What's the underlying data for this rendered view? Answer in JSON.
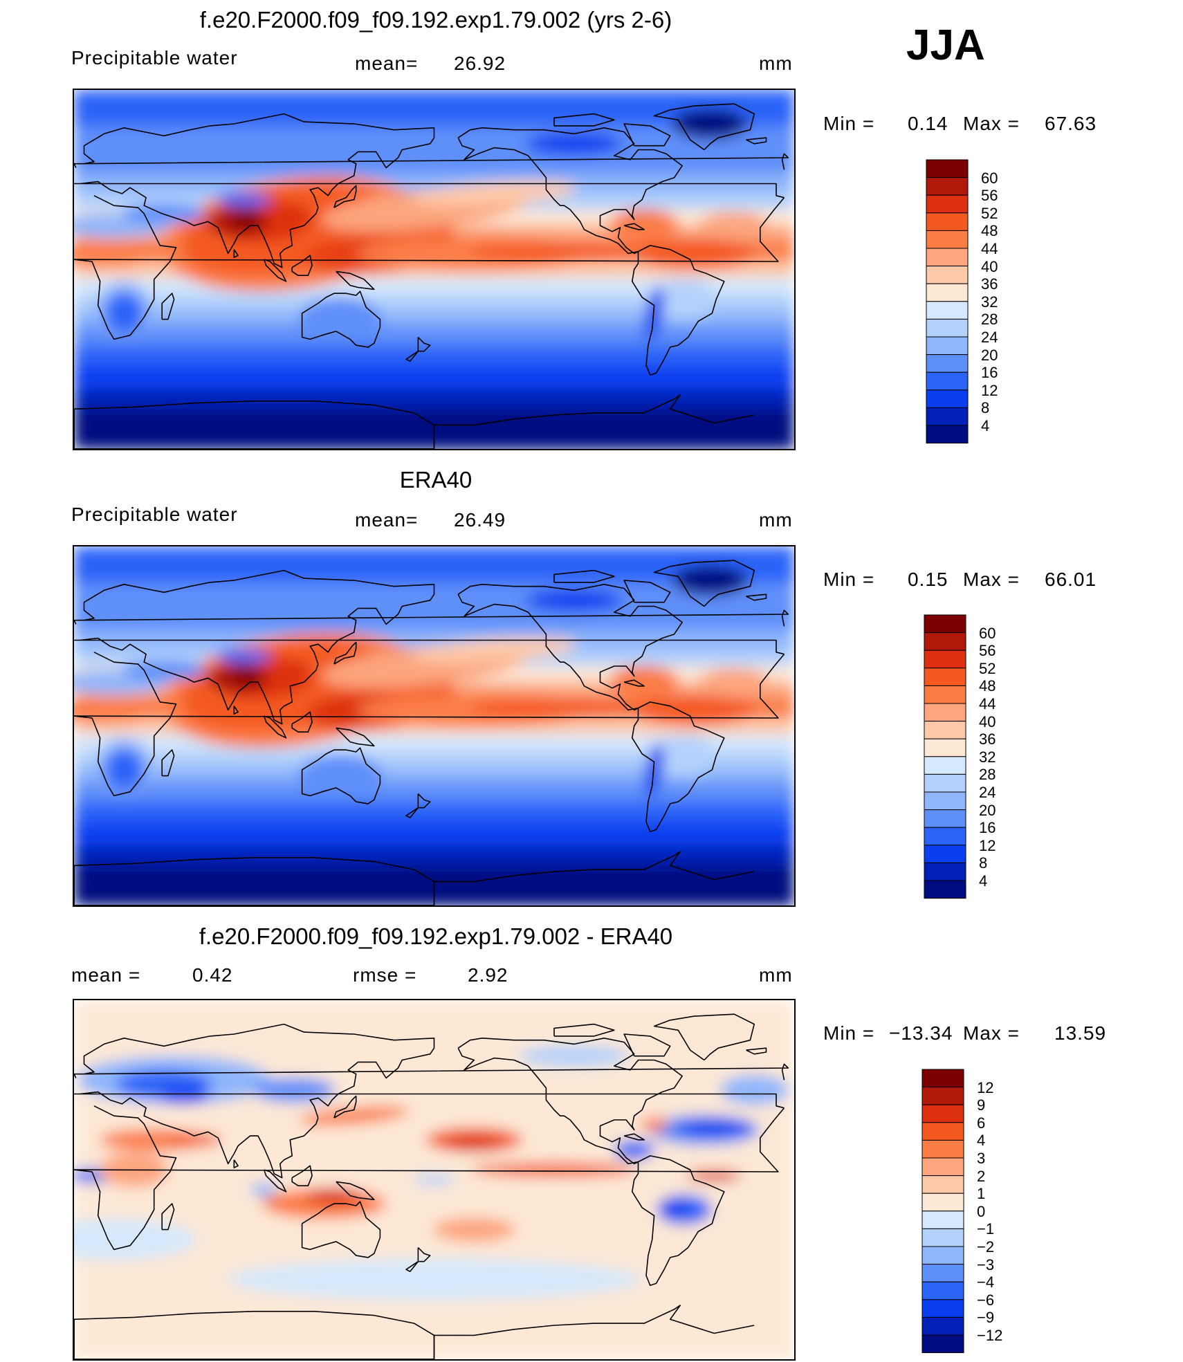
{
  "season": "JJA",
  "panels": [
    {
      "title": "f.e20.F2000.f09_f09.192.exp1.79.002 (yrs 2-6)",
      "variable": "Precipitable water",
      "stat_label": "mean=",
      "stat_value": "26.92",
      "units": "mm",
      "min_label": "Min  =",
      "min_value": "0.14",
      "max_label": "Max  =",
      "max_value": "67.63"
    },
    {
      "title": "ERA40",
      "variable": "Precipitable water",
      "stat_label": "mean=",
      "stat_value": "26.49",
      "units": "mm",
      "min_label": "Min  =",
      "min_value": "0.15",
      "max_label": "Max  =",
      "max_value": "66.01"
    },
    {
      "title": "f.e20.F2000.f09_f09.192.exp1.79.002 - ERA40",
      "mean_label": "mean  =",
      "mean_value": "0.42",
      "rmse_label": "rmse  =",
      "rmse_value": "2.92",
      "units": "mm",
      "min_label": "Min  =",
      "min_value": "−13.34",
      "max_label": "Max  =",
      "max_value": "13.59"
    }
  ],
  "chart_data": [
    {
      "type": "heatmap",
      "title": "f.e20.F2000.f09_f09.192.exp1.79.002 (yrs 2-6)",
      "variable": "Precipitable water",
      "units": "mm",
      "mean": 26.92,
      "min": 0.14,
      "max": 67.63,
      "levels": [
        4,
        8,
        12,
        16,
        20,
        24,
        28,
        32,
        36,
        40,
        44,
        48,
        52,
        56,
        60
      ],
      "level_labels": [
        "60",
        "56",
        "52",
        "48",
        "44",
        "40",
        "36",
        "32",
        "28",
        "24",
        "20",
        "16",
        "12",
        "8",
        "4"
      ],
      "colors": [
        "#7a0000",
        "#b0180a",
        "#dd3010",
        "#f45a20",
        "#fb7d46",
        "#fca57e",
        "#fec9a8",
        "#fde8d6",
        "#d6e8fb",
        "#b3d2fb",
        "#8fb6fb",
        "#5f8ff9",
        "#2c63f8",
        "#0a3ff0",
        "#0020b8",
        "#000d80"
      ]
    },
    {
      "type": "heatmap",
      "title": "ERA40",
      "variable": "Precipitable water",
      "units": "mm",
      "mean": 26.49,
      "min": 0.15,
      "max": 66.01,
      "levels": [
        4,
        8,
        12,
        16,
        20,
        24,
        28,
        32,
        36,
        40,
        44,
        48,
        52,
        56,
        60
      ],
      "level_labels": [
        "60",
        "56",
        "52",
        "48",
        "44",
        "40",
        "36",
        "32",
        "28",
        "24",
        "20",
        "16",
        "12",
        "8",
        "4"
      ],
      "colors": [
        "#7a0000",
        "#b0180a",
        "#dd3010",
        "#f45a20",
        "#fb7d46",
        "#fca57e",
        "#fec9a8",
        "#fde8d6",
        "#d6e8fb",
        "#b3d2fb",
        "#8fb6fb",
        "#5f8ff9",
        "#2c63f8",
        "#0a3ff0",
        "#0020b8",
        "#000d80"
      ]
    },
    {
      "type": "heatmap",
      "title": "f.e20.F2000.f09_f09.192.exp1.79.002 - ERA40",
      "units": "mm",
      "mean": 0.42,
      "rmse": 2.92,
      "min": -13.34,
      "max": 13.59,
      "levels": [
        -12,
        -9,
        -6,
        -4,
        -3,
        -2,
        -1,
        0,
        1,
        2,
        3,
        4,
        6,
        9,
        12
      ],
      "level_labels": [
        "12",
        "9",
        "6",
        "4",
        "3",
        "2",
        "1",
        "0",
        "−1",
        "−2",
        "−3",
        "−4",
        "−6",
        "−9",
        "−12"
      ],
      "colors": [
        "#7a0000",
        "#b0180a",
        "#dd3010",
        "#f45a20",
        "#fb7d46",
        "#fca57e",
        "#fec9a8",
        "#fde8d6",
        "#d6e8fb",
        "#b3d2fb",
        "#8fb6fb",
        "#5f8ff9",
        "#2c63f8",
        "#0a3ff0",
        "#0020b8",
        "#000d80"
      ]
    }
  ]
}
